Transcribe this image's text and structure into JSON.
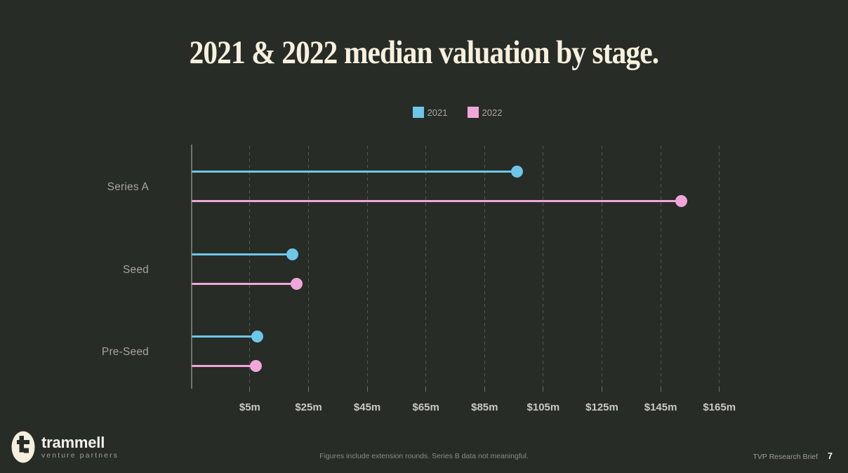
{
  "page": {
    "title": "2021 & 2022 median valuation by stage.",
    "footnote": "Figures include extension rounds. Series B data not meaningful.",
    "footer_right": {
      "label": "TVP Research Brief",
      "page_number": "7"
    },
    "logo": {
      "name": "trammell",
      "tagline": "venture partners"
    }
  },
  "colors": {
    "background": "#272c26",
    "title_text": "#f7f0de",
    "series_2021": "#6ec6e8",
    "series_2022": "#f1a6da",
    "gridline": "#545950",
    "axis": "#70756c",
    "category_label": "#a4a79f",
    "x_tick_label": "#c7cac2",
    "legend_text": "#a8aba3",
    "footnote_text": "#8a8e84",
    "logo_cream": "#f5efde"
  },
  "chart_data": {
    "type": "bar",
    "subtype": "horizontal-lollipop",
    "title": "2021 & 2022 median valuation by stage.",
    "categories": [
      "Series A",
      "Seed",
      "Pre-Seed"
    ],
    "series": [
      {
        "name": "2021",
        "color": "#6ec6e8",
        "values": [
          96,
          19.5,
          7.5
        ]
      },
      {
        "name": "2022",
        "color": "#f1a6da",
        "values": [
          152,
          21,
          7
        ]
      }
    ],
    "unit": "USD millions (median valuation)",
    "x_ticks": [
      {
        "value": 5,
        "label": "$5m"
      },
      {
        "value": 25,
        "label": "$25m"
      },
      {
        "value": 45,
        "label": "$45m"
      },
      {
        "value": 65,
        "label": "$65m"
      },
      {
        "value": 85,
        "label": "$85m"
      },
      {
        "value": 105,
        "label": "$105m"
      },
      {
        "value": 125,
        "label": "$125m"
      },
      {
        "value": 145,
        "label": "$145m"
      },
      {
        "value": 165,
        "label": "$165m"
      }
    ],
    "xlim": [
      -15,
      170
    ],
    "grid": "vertical-dashed",
    "legend_position": "top-center"
  }
}
